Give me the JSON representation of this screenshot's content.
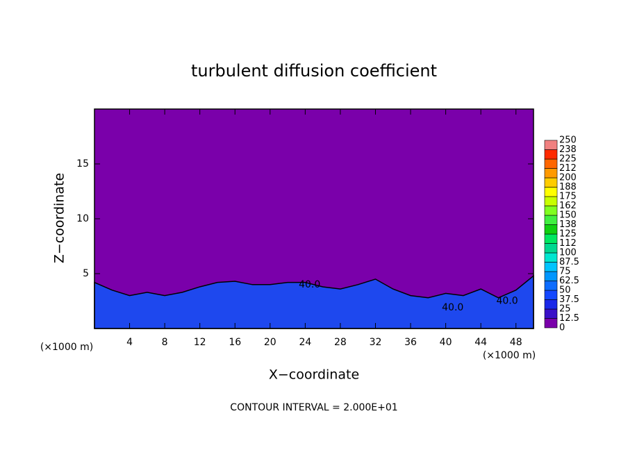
{
  "chart_data": {
    "type": "contour",
    "title": "turbulent diffusion coefficient",
    "x_label": "X−coordinate",
    "y_label": "Z−coordinate",
    "x_unit_label": "(×1000 m)",
    "y_unit_label": "(×1000 m)",
    "footnote": "CONTOUR INTERVAL = 2.000E+01",
    "xlim": [
      0,
      50
    ],
    "ylim": [
      0,
      20
    ],
    "xticks": [
      4,
      8,
      12,
      16,
      20,
      24,
      28,
      32,
      36,
      40,
      44,
      48
    ],
    "yticks": [
      5,
      10,
      15
    ],
    "x": [
      0,
      2,
      4,
      6,
      8,
      10,
      12,
      14,
      16,
      18,
      20,
      22,
      24,
      26,
      28,
      30,
      32,
      34,
      36,
      38,
      40,
      42,
      44,
      46,
      48,
      50
    ],
    "values": [
      4.2,
      3.5,
      3.0,
      3.3,
      3.0,
      3.3,
      3.8,
      4.2,
      4.3,
      4.0,
      4.0,
      4.2,
      4.2,
      3.8,
      3.6,
      4.0,
      4.5,
      3.6,
      3.0,
      2.8,
      3.2,
      3.0,
      3.6,
      2.8,
      3.5,
      4.8
    ],
    "color": "#1e48ee",
    "annotations": [
      {
        "text": "40.0",
        "x": 24.5,
        "y": 4.0
      },
      {
        "text": "40.0",
        "x": 40.8,
        "y": 1.9
      },
      {
        "text": "40.0",
        "x": 47.0,
        "y": 2.5
      }
    ],
    "clim": [
      0,
      250
    ],
    "cticks": [
      0,
      12.5,
      25,
      37.5,
      50,
      62.5,
      75,
      87.5,
      100,
      {
        "value": 112.5,
        "label": "112"
      },
      125,
      {
        "value": 137.5,
        "label": "138"
      },
      150,
      {
        "value": 162.5,
        "label": "162"
      },
      175,
      {
        "value": 187.5,
        "label": "188"
      },
      200,
      {
        "value": 212.5,
        "label": "212"
      },
      225,
      {
        "value": 237.5,
        "label": "238"
      },
      250
    ],
    "colors": [
      "#7a00aa",
      "#3a10c8",
      "#1a28e8",
      "#1448ff",
      "#0c6cff",
      "#0096ff",
      "#00c4ff",
      "#00e6d0",
      "#00d890",
      "#00e860",
      "#10d010",
      "#40f040",
      "#80ff20",
      "#c8ff00",
      "#ffff00",
      "#ffcc00",
      "#ff9900",
      "#ff6600",
      "#ff2a00",
      "#f08080"
    ]
  }
}
